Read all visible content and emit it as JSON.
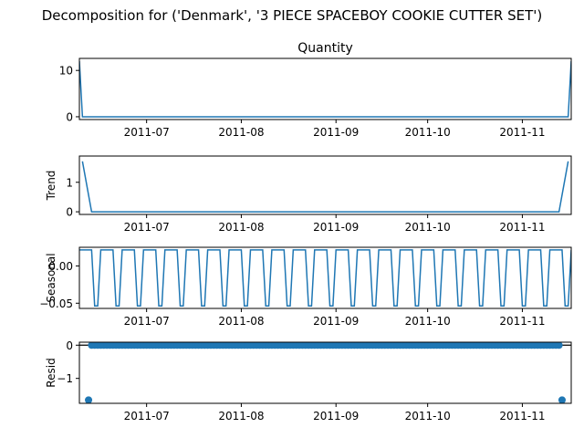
{
  "figure": {
    "suptitle": "Decomposition for ('Denmark', '3 PIECE SPACEBOY COOKIE CUTTER SET')"
  },
  "colors": {
    "line": "#1f77b4",
    "axis": "#000000",
    "background": "#ffffff"
  },
  "chart_data": [
    {
      "type": "line",
      "title": "Quantity",
      "ylabel": "",
      "x_range": [
        "2011-06-09",
        "2011-11-17"
      ],
      "ylim": [
        -0.6,
        12.6
      ],
      "yticks": [
        0,
        10
      ],
      "xticks": [
        "2011-07",
        "2011-08",
        "2011-09",
        "2011-10",
        "2011-11"
      ],
      "x": [
        "2011-06-09",
        "2011-06-10",
        "2011-11-16",
        "2011-11-17"
      ],
      "values": [
        12,
        0,
        0,
        12
      ]
    },
    {
      "type": "line",
      "title": "",
      "ylabel": "Trend",
      "x_range": [
        "2011-06-09",
        "2011-11-17"
      ],
      "ylim": [
        -0.09,
        1.89
      ],
      "yticks": [
        0,
        1
      ],
      "xticks": [
        "2011-07",
        "2011-08",
        "2011-09",
        "2011-10",
        "2011-11"
      ],
      "x": [
        "2011-06-10",
        "2011-06-13",
        "2011-11-13",
        "2011-11-16"
      ],
      "values": [
        1.71,
        0,
        0,
        1.71
      ]
    },
    {
      "type": "line",
      "title": "",
      "ylabel": "Seasonal",
      "x_range": [
        "2011-06-09",
        "2011-11-17"
      ],
      "ylim": [
        -0.057,
        0.025
      ],
      "yticks": [
        0.0,
        -0.05
      ],
      "ytick_labels": [
        "0.00",
        "−0.05"
      ],
      "xticks": [
        "2011-07",
        "2011-08",
        "2011-09",
        "2011-10",
        "2011-11"
      ],
      "period_days": 7,
      "weekly_pattern": [
        0.02143,
        0.02143,
        0.02143,
        0.02143,
        0.02143,
        -0.05357,
        -0.05357
      ],
      "x_start": "2011-06-09",
      "x_end": "2011-11-17"
    },
    {
      "type": "scatter",
      "title": "",
      "ylabel": "Resid",
      "x_range": [
        "2011-06-09",
        "2011-11-17"
      ],
      "ylim": [
        -1.75,
        0.09
      ],
      "yticks": [
        0,
        -1
      ],
      "ytick_labels": [
        "0",
        "−1"
      ],
      "xticks": [
        "2011-07",
        "2011-08",
        "2011-09",
        "2011-10",
        "2011-11"
      ],
      "baseline": 0,
      "resid_start": "2011-06-12",
      "resid_end": "2011-11-14",
      "pattern": [
        0,
        0,
        0,
        0,
        0,
        0,
        0
      ],
      "outliers": [
        {
          "x": "2011-06-12",
          "value": -1.65
        },
        {
          "x": "2011-11-14",
          "value": -1.65
        }
      ]
    }
  ]
}
